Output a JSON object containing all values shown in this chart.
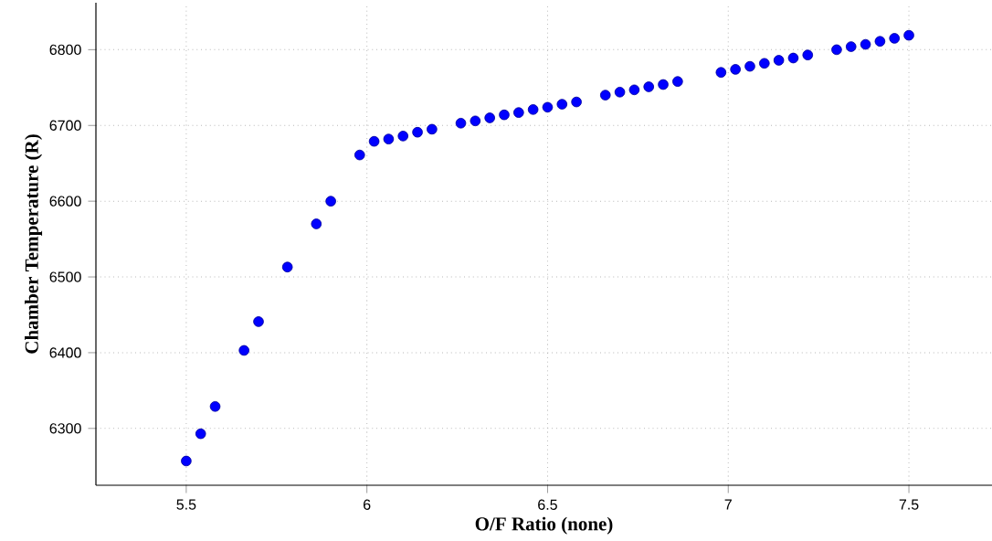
{
  "chart_data": {
    "type": "scatter",
    "xlabel": "O/F Ratio (none)",
    "ylabel": "Chamber Temperature (R)",
    "x": [
      5.5,
      5.54,
      5.58,
      5.66,
      5.7,
      5.78,
      5.86,
      5.9,
      5.98,
      6.02,
      6.06,
      6.1,
      6.14,
      6.18,
      6.26,
      6.3,
      6.34,
      6.38,
      6.42,
      6.46,
      6.5,
      6.54,
      6.58,
      6.66,
      6.7,
      6.74,
      6.78,
      6.82,
      6.86,
      6.98,
      7.02,
      7.06,
      7.1,
      7.14,
      7.18,
      7.22,
      7.3,
      7.34,
      7.38,
      7.42,
      7.46,
      7.5
    ],
    "values": [
      6257,
      6293,
      6329,
      6403,
      6441,
      6513,
      6570,
      6600,
      6661,
      6679,
      6682,
      6686,
      6691,
      6695,
      6703,
      6706,
      6710,
      6714,
      6717,
      6721,
      6724,
      6728,
      6731,
      6740,
      6744,
      6747,
      6751,
      6754,
      6758,
      6770,
      6774,
      6778,
      6782,
      6786,
      6789,
      6793,
      6800,
      6804,
      6807,
      6811,
      6815,
      6819
    ],
    "color": "#0000ff",
    "marker": "circle",
    "grid": true,
    "xlim": [
      5.25,
      7.73
    ],
    "ylim": [
      6225,
      6862
    ],
    "xticks": [
      5.5,
      6,
      6.5,
      7,
      7.5
    ],
    "yticks": [
      6300,
      6400,
      6500,
      6600,
      6700,
      6800
    ]
  }
}
